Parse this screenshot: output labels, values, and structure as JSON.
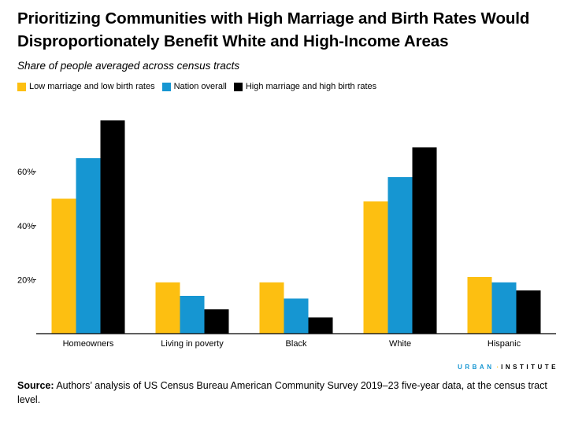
{
  "title": "Prioritizing Communities with High Marriage and Birth Rates Would Disproportionately Benefit White and High-Income Areas",
  "subtitle": "Share of people averaged across census tracts",
  "source_label": "Source:",
  "source_text": "Authors’ analysis of US Census Bureau American Community Survey 2019–23 five-year data, at the census tract level.",
  "brand": {
    "part1": "URBAN",
    "dot": "·",
    "part2": "INSTITUTE"
  },
  "colors": {
    "low": "#fdbf11",
    "nation": "#1696d2",
    "high": "#000000"
  },
  "chart_data": {
    "type": "bar",
    "title": "Share of people averaged across census tracts",
    "xlabel": "",
    "ylabel": "",
    "ylim": [
      0,
      80
    ],
    "yticks": [
      20,
      40,
      60
    ],
    "ytick_labels": [
      "20%",
      "40%",
      "60%"
    ],
    "grid": false,
    "legend_position": "top-left",
    "categories": [
      "Homeowners",
      "Living in poverty",
      "Black",
      "White",
      "Hispanic"
    ],
    "series": [
      {
        "name": "Low marriage and low birth rates",
        "color": "#fdbf11",
        "values": [
          50,
          19,
          19,
          49,
          21
        ]
      },
      {
        "name": "Nation overall",
        "color": "#1696d2",
        "values": [
          65,
          14,
          13,
          58,
          19
        ]
      },
      {
        "name": "High marriage and high birth rates",
        "color": "#000000",
        "values": [
          79,
          9,
          6,
          69,
          16
        ]
      }
    ]
  }
}
